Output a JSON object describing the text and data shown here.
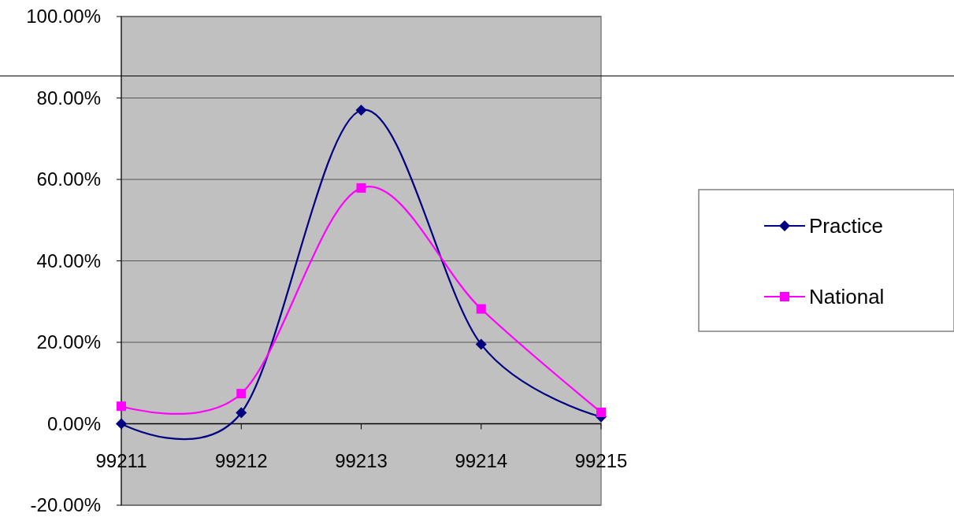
{
  "chart_data": {
    "type": "line",
    "categories": [
      "99211",
      "99212",
      "99213",
      "99214",
      "99215"
    ],
    "series": [
      {
        "name": "Practice",
        "color": "#000080",
        "marker": "diamond",
        "values": [
          0.0,
          2.7,
          77.0,
          19.5,
          1.7
        ]
      },
      {
        "name": "National",
        "color": "#ff00ff",
        "marker": "square",
        "values": [
          4.3,
          7.4,
          57.9,
          28.2,
          2.8
        ]
      }
    ],
    "ylim": [
      -20,
      100
    ],
    "yticks": [
      {
        "value": -20,
        "label": "-20.00%"
      },
      {
        "value": 0,
        "label": "0.00%"
      },
      {
        "value": 20,
        "label": "20.00%"
      },
      {
        "value": 40,
        "label": "40.00%"
      },
      {
        "value": 60,
        "label": "60.00%"
      },
      {
        "value": 80,
        "label": "80.00%"
      },
      {
        "value": 100,
        "label": "100.00%"
      }
    ],
    "ref_lines": [
      {
        "axis": "y",
        "value": 85.4,
        "color": "#000000"
      }
    ],
    "grid": "y",
    "legend": "right",
    "line_style": "solid"
  }
}
